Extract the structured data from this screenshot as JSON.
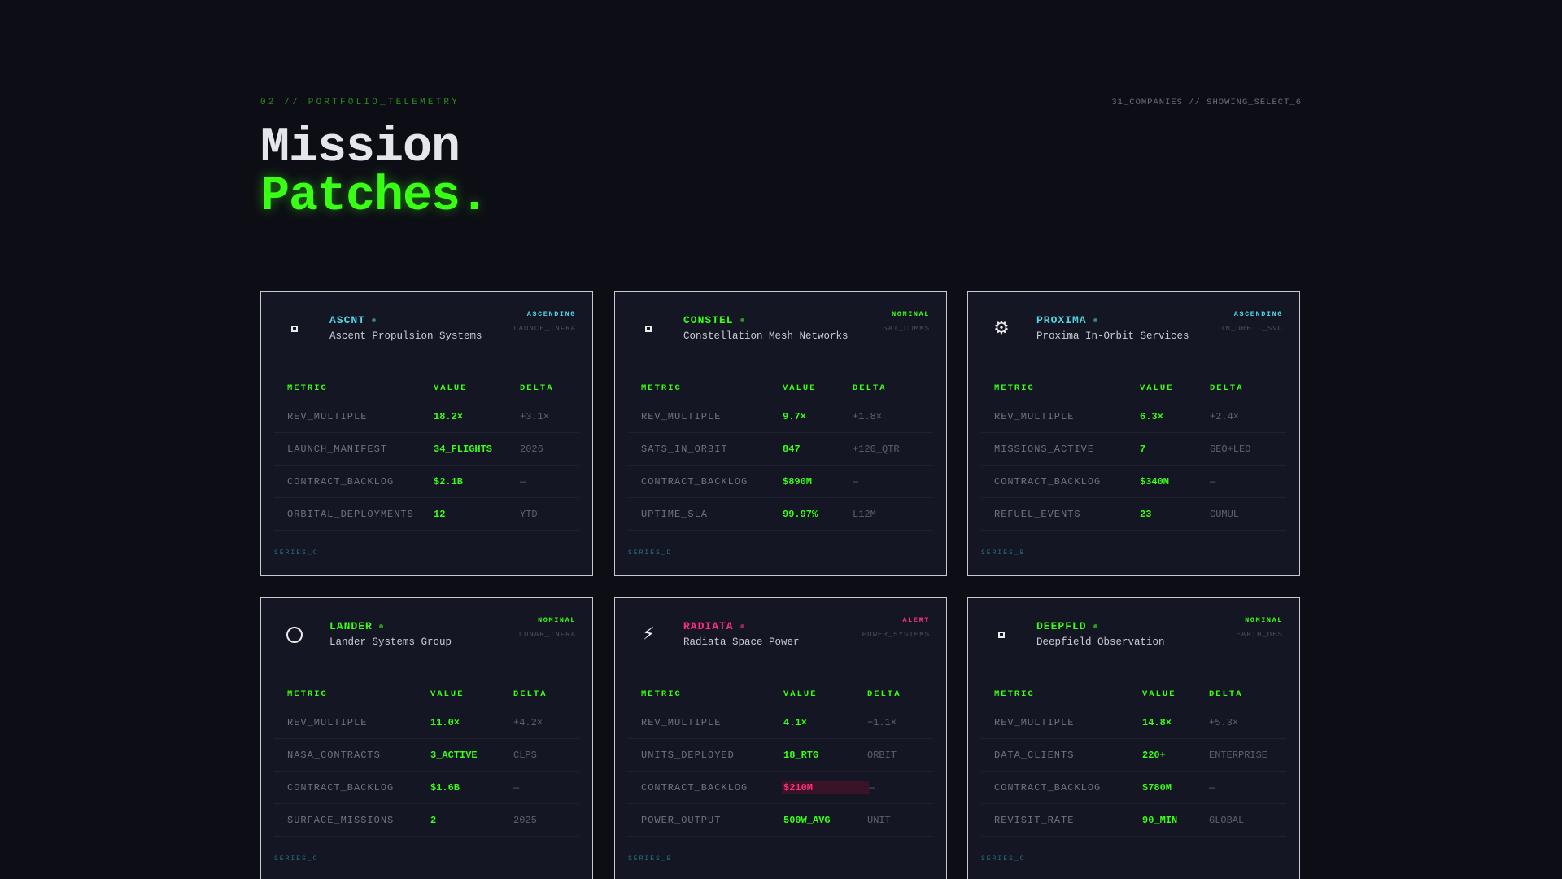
{
  "section": {
    "label": "02 // PORTFOLIO_TELEMETRY",
    "meta": "31_COMPANIES // SHOWING_SELECT_6"
  },
  "title": {
    "line1": "Mission",
    "line2": "Patches."
  },
  "colors": {
    "background": "#0d0e15",
    "accent_green": "#39ff14",
    "accent_cyan": "#4fd7e4",
    "alert_pink": "#ff2f7e",
    "status_nominal": "#39ff14"
  },
  "cards": [
    {
      "ticker": "ASCNT",
      "ticker_color": "#4fd7e4",
      "name": "Ascent Propulsion Systems",
      "status": "ASCENDING",
      "status_color": "#4fd7e4",
      "sector": "LAUNCH_INFRA",
      "icon": "square-icon",
      "headers": [
        "METRIC",
        "VALUE",
        "DELTA"
      ],
      "rows": [
        {
          "metric": "REV_MULTIPLE",
          "value": "18.2×",
          "delta": "+3.1×"
        },
        {
          "metric": "LAUNCH_MANIFEST",
          "value": "34_FLIGHTS",
          "delta": "2026"
        },
        {
          "metric": "CONTRACT_BACKLOG",
          "value": "$2.1B",
          "delta": "—"
        },
        {
          "metric": "ORBITAL_DEPLOYMENTS",
          "value": "12",
          "delta": "YTD"
        }
      ],
      "series": "SERIES_C"
    },
    {
      "ticker": "CONSTEL",
      "ticker_color": "#39ff14",
      "name": "Constellation Mesh Networks",
      "status": "NOMINAL",
      "status_color": "#39ff14",
      "sector": "SAT_COMMS",
      "icon": "square-icon",
      "headers": [
        "METRIC",
        "VALUE",
        "DELTA"
      ],
      "rows": [
        {
          "metric": "REV_MULTIPLE",
          "value": "9.7×",
          "delta": "+1.8×"
        },
        {
          "metric": "SATS_IN_ORBIT",
          "value": "847",
          "delta": "+120_QTR"
        },
        {
          "metric": "CONTRACT_BACKLOG",
          "value": "$890M",
          "delta": "—"
        },
        {
          "metric": "UPTIME_SLA",
          "value": "99.97%",
          "delta": "L12M"
        }
      ],
      "series": "SERIES_D"
    },
    {
      "ticker": "PROXIMA",
      "ticker_color": "#4fd7e4",
      "name": "Proxima In-Orbit Services",
      "status": "ASCENDING",
      "status_color": "#4fd7e4",
      "sector": "IN_ORBIT_SVC",
      "icon": "gear-icon",
      "headers": [
        "METRIC",
        "VALUE",
        "DELTA"
      ],
      "rows": [
        {
          "metric": "REV_MULTIPLE",
          "value": "6.3×",
          "delta": "+2.4×"
        },
        {
          "metric": "MISSIONS_ACTIVE",
          "value": "7",
          "delta": "GEO+LEO"
        },
        {
          "metric": "CONTRACT_BACKLOG",
          "value": "$340M",
          "delta": "—"
        },
        {
          "metric": "REFUEL_EVENTS",
          "value": "23",
          "delta": "CUMUL"
        }
      ],
      "series": "SERIES_B"
    },
    {
      "ticker": "LANDER",
      "ticker_color": "#39ff14",
      "name": "Lander Systems Group",
      "status": "NOMINAL",
      "status_color": "#39ff14",
      "sector": "LUNAR_INFRA",
      "icon": "circle-icon",
      "headers": [
        "METRIC",
        "VALUE",
        "DELTA"
      ],
      "rows": [
        {
          "metric": "REV_MULTIPLE",
          "value": "11.0×",
          "delta": "+4.2×"
        },
        {
          "metric": "NASA_CONTRACTS",
          "value": "3_ACTIVE",
          "delta": "CLPS"
        },
        {
          "metric": "CONTRACT_BACKLOG",
          "value": "$1.6B",
          "delta": "—"
        },
        {
          "metric": "SURFACE_MISSIONS",
          "value": "2",
          "delta": "2025"
        }
      ],
      "series": "SERIES_C"
    },
    {
      "ticker": "RADIATA",
      "ticker_color": "#ff2f7e",
      "name": "Radiata Space Power",
      "status": "ALERT",
      "status_color": "#ff2f7e",
      "sector": "POWER_SYSTEMS",
      "icon": "lightning-icon",
      "headers": [
        "METRIC",
        "VALUE",
        "DELTA"
      ],
      "rows": [
        {
          "metric": "REV_MULTIPLE",
          "value": "4.1×",
          "delta": "+1.1×"
        },
        {
          "metric": "UNITS_DEPLOYED",
          "value": "18_RTG",
          "delta": "ORBIT"
        },
        {
          "metric": "CONTRACT_BACKLOG",
          "value": "$210M",
          "delta": "—",
          "alert": true
        },
        {
          "metric": "POWER_OUTPUT",
          "value": "500W_AVG",
          "delta": "UNIT"
        }
      ],
      "series": "SERIES_B"
    },
    {
      "ticker": "DEEPFLD",
      "ticker_color": "#39ff14",
      "name": "Deepfield Observation",
      "status": "NOMINAL",
      "status_color": "#39ff14",
      "sector": "EARTH_OBS",
      "icon": "square-icon",
      "headers": [
        "METRIC",
        "VALUE",
        "DELTA"
      ],
      "rows": [
        {
          "metric": "REV_MULTIPLE",
          "value": "14.8×",
          "delta": "+5.3×"
        },
        {
          "metric": "DATA_CLIENTS",
          "value": "220+",
          "delta": "ENTERPRISE"
        },
        {
          "metric": "CONTRACT_BACKLOG",
          "value": "$780M",
          "delta": "—"
        },
        {
          "metric": "REVISIT_RATE",
          "value": "90_MIN",
          "delta": "GLOBAL"
        }
      ],
      "series": "SERIES_C"
    }
  ]
}
